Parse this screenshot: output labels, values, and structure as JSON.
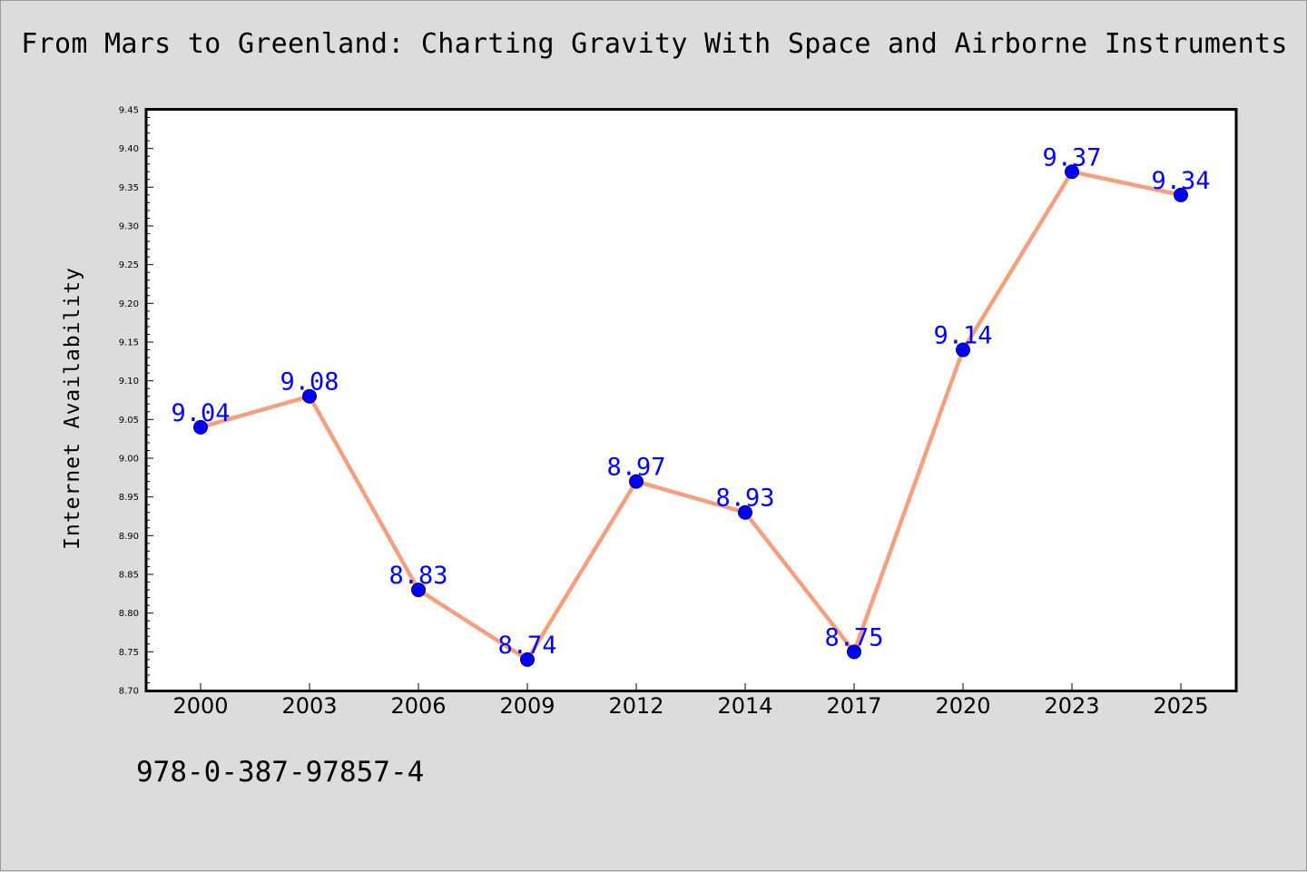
{
  "chart_data": {
    "type": "line",
    "title": "From Mars to Greenland: Charting Gravity With Space and Airborne Instruments",
    "xlabel": "",
    "ylabel": "Internet Availability",
    "categories": [
      "2000",
      "2003",
      "2006",
      "2009",
      "2012",
      "2014",
      "2017",
      "2020",
      "2023",
      "2025"
    ],
    "series": [
      {
        "values": [
          9.04,
          9.08,
          8.83,
          8.74,
          8.97,
          8.93,
          8.75,
          9.14,
          9.37,
          9.34
        ],
        "line_color": "#f4a07e",
        "marker_color": "#0000ff"
      }
    ],
    "data_labels": [
      "9.04",
      "9.08",
      "8.83",
      "8.74",
      "8.97",
      "8.93",
      "8.75",
      "9.14",
      "9.37",
      "9.34"
    ],
    "yticks": [
      "8.70",
      "8.75",
      "8.80",
      "8.85",
      "8.90",
      "8.95",
      "9.00",
      "9.05",
      "9.10",
      "9.15",
      "9.20",
      "9.25",
      "9.30",
      "9.35",
      "9.40",
      "9.45"
    ],
    "ylim": [
      8.7,
      9.45
    ],
    "grid": false,
    "legend": "none",
    "label_color": "#0000ff"
  },
  "footer": {
    "isbn": "978-0-387-97857-4"
  }
}
